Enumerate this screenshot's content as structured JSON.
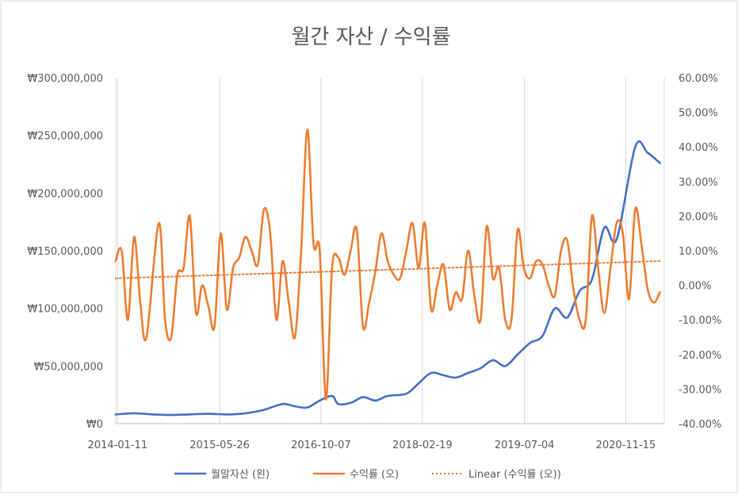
{
  "chart_data": {
    "type": "line",
    "title": "월간 자산 / 수익률",
    "x_tick_labels": [
      "2014-01-11",
      "2015-05-26",
      "2016-10-07",
      "2018-02-19",
      "2019-07-04",
      "2020-11-15"
    ],
    "y_left": {
      "min": 0,
      "max": 300000000,
      "step": 50000000,
      "tick_labels": [
        "₩0",
        "₩50,000,000",
        "₩100,000,000",
        "₩150,000,000",
        "₩200,000,000",
        "₩250,000,000",
        "₩300,000,000"
      ]
    },
    "y_right": {
      "min": -40,
      "max": 60,
      "step": 10,
      "tick_labels": [
        "-40.00%",
        "-30.00%",
        "-20.00%",
        "-10.00%",
        "0.00%",
        "10.00%",
        "20.00%",
        "30.00%",
        "40.00%",
        "50.00%",
        "60.00%"
      ]
    },
    "grid": "vertical",
    "legend_position": "bottom",
    "colors": {
      "asset": "#4472C4",
      "return": "#ED7D31",
      "trend": "#ED7D31"
    },
    "series": [
      {
        "name": "월말자산 (왼)",
        "axis": "left",
        "x": [
          "2014-01",
          "2014-04",
          "2014-07",
          "2014-10",
          "2015-01",
          "2015-04",
          "2015-07",
          "2015-10",
          "2016-01",
          "2016-04",
          "2016-06",
          "2016-08",
          "2016-10",
          "2016-12",
          "2017-01",
          "2017-03",
          "2017-05",
          "2017-07",
          "2017-09",
          "2017-12",
          "2018-02",
          "2018-04",
          "2018-06",
          "2018-08",
          "2018-10",
          "2018-12",
          "2019-02",
          "2019-04",
          "2019-06",
          "2019-08",
          "2019-10",
          "2019-12",
          "2020-02",
          "2020-04",
          "2020-06",
          "2020-08",
          "2020-10",
          "2021-01",
          "2021-03",
          "2021-05"
        ],
        "values": [
          8000000,
          9000000,
          8000000,
          7500000,
          8000000,
          8500000,
          8000000,
          9000000,
          12000000,
          17000000,
          15000000,
          14000000,
          20000000,
          24000000,
          17000000,
          18000000,
          23000000,
          20000000,
          24000000,
          26000000,
          35000000,
          44000000,
          42000000,
          40000000,
          44000000,
          48000000,
          55000000,
          50000000,
          60000000,
          70000000,
          76000000,
          100000000,
          92000000,
          115000000,
          125000000,
          170000000,
          160000000,
          240000000,
          235000000,
          226000000
        ]
      },
      {
        "name": "수익률 (오)",
        "axis": "right",
        "x": [
          "2014-01",
          "2014-02",
          "2014-03",
          "2014-04",
          "2014-05",
          "2014-06",
          "2014-08",
          "2014-09",
          "2014-10",
          "2014-11",
          "2014-12",
          "2015-01",
          "2015-02",
          "2015-03",
          "2015-04",
          "2015-05",
          "2015-06",
          "2015-07",
          "2015-08",
          "2015-09",
          "2015-10",
          "2015-11",
          "2015-12",
          "2016-01",
          "2016-02",
          "2016-03",
          "2016-04",
          "2016-05",
          "2016-06",
          "2016-07",
          "2016-08",
          "2016-09",
          "2016-10",
          "2016-11",
          "2016-12",
          "2017-01",
          "2017-02",
          "2017-03",
          "2017-04",
          "2017-05",
          "2017-06",
          "2017-07",
          "2017-08",
          "2017-09",
          "2017-10",
          "2017-11",
          "2017-12",
          "2018-01",
          "2018-02",
          "2018-03",
          "2018-04",
          "2018-05",
          "2018-06",
          "2018-07",
          "2018-08",
          "2018-09",
          "2018-10",
          "2018-11",
          "2018-12",
          "2019-01",
          "2019-02",
          "2019-03",
          "2019-04",
          "2019-05",
          "2019-06",
          "2019-07",
          "2019-08",
          "2019-09",
          "2019-10",
          "2019-11",
          "2019-12",
          "2020-01",
          "2020-02",
          "2020-03",
          "2020-04",
          "2020-05",
          "2020-06",
          "2020-07",
          "2020-08",
          "2020-09",
          "2020-10",
          "2020-11",
          "2020-12",
          "2021-01",
          "2021-02",
          "2021-03",
          "2021-04",
          "2021-05"
        ],
        "values": [
          7,
          10,
          -10,
          14,
          -5,
          -15,
          18,
          -10,
          -15,
          3,
          5,
          20,
          -8,
          0,
          -6,
          -12,
          15,
          -7,
          5,
          8,
          14,
          10,
          6,
          22,
          15,
          -10,
          7,
          -5,
          -15,
          10,
          45,
          12,
          10,
          -33,
          5,
          8,
          3,
          10,
          16,
          -12,
          -5,
          4,
          15,
          7,
          3,
          2,
          10,
          18,
          5,
          18,
          -7,
          0,
          6,
          -7,
          -2,
          -4,
          10,
          -3,
          -10,
          17,
          2,
          5,
          -10,
          -10,
          16,
          5,
          2,
          7,
          6,
          0,
          -3,
          10,
          13,
          -1,
          -10,
          -10,
          20,
          5,
          -8,
          5,
          18,
          15,
          -4,
          22,
          12,
          -1,
          -5,
          -2
        ]
      },
      {
        "name": "Linear (수익률 (오))",
        "axis": "right",
        "style": "dotted",
        "x": [
          "2014-01",
          "2021-05"
        ],
        "values": [
          2,
          7
        ]
      }
    ]
  }
}
